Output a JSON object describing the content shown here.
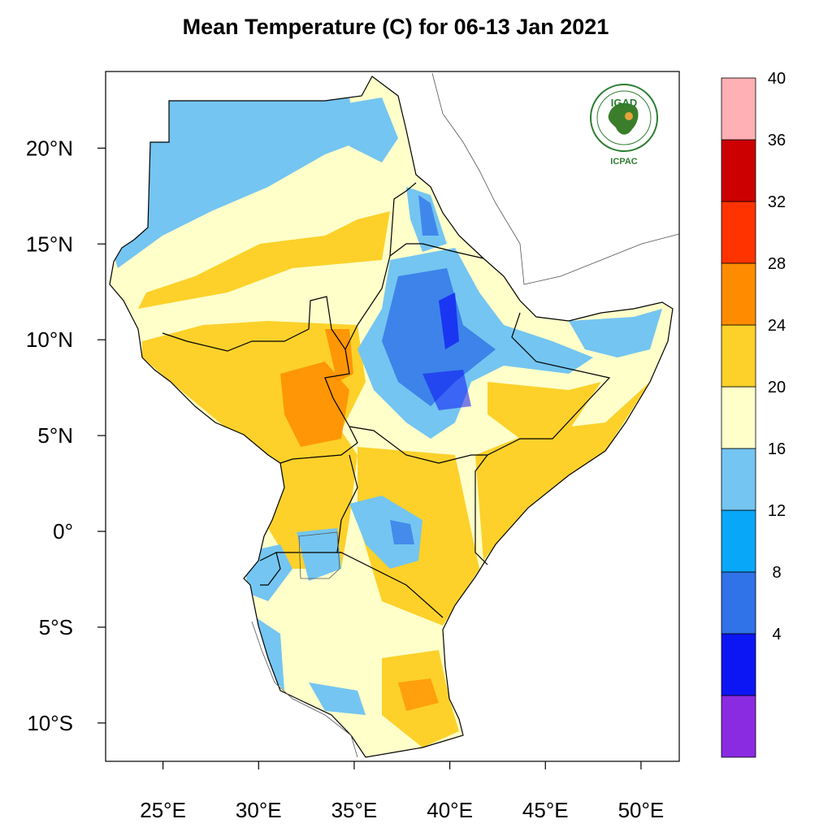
{
  "title": "Mean Temperature (C) for 06-13 Jan 2021",
  "logo": {
    "name": "IGAD",
    "caption": "ICPAC"
  },
  "colors": {
    "land_outline": "#000000",
    "coast": "#555555",
    "frame": "#000000"
  },
  "colorbar": {
    "levels": [
      {
        "color": "#8a2be2",
        "label": ""
      },
      {
        "color": "#0c16f5",
        "label": "4"
      },
      {
        "color": "#3072e8",
        "label": "8"
      },
      {
        "color": "#08a7f7",
        "label": "12"
      },
      {
        "color": "#74c5f1",
        "label": "16"
      },
      {
        "color": "#ffffca",
        "label": "20"
      },
      {
        "color": "#fdd12a",
        "label": "24"
      },
      {
        "color": "#ff8c00",
        "label": "28"
      },
      {
        "color": "#ff3300",
        "label": "32"
      },
      {
        "color": "#cc0000",
        "label": "36"
      },
      {
        "color": "#ffb0b4",
        "label": "40"
      }
    ]
  },
  "chart_data": {
    "type": "heatmap",
    "title": "Mean Temperature (C) for 06-13 Jan 2021",
    "xlim": [
      22,
      52
    ],
    "ylim": [
      -12,
      24
    ],
    "x_ticks": [
      {
        "value": 25,
        "label": "25°E"
      },
      {
        "value": 30,
        "label": "30°E"
      },
      {
        "value": 35,
        "label": "35°E"
      },
      {
        "value": 40,
        "label": "40°E"
      },
      {
        "value": 45,
        "label": "45°E"
      },
      {
        "value": 50,
        "label": "50°E"
      }
    ],
    "y_ticks": [
      {
        "value": 20,
        "label": "20°N"
      },
      {
        "value": 15,
        "label": "15°N"
      },
      {
        "value": 10,
        "label": "10°N"
      },
      {
        "value": 5,
        "label": "5°N"
      },
      {
        "value": 0,
        "label": "0°"
      },
      {
        "value": -5,
        "label": "5°S"
      },
      {
        "value": -10,
        "label": "10°S"
      }
    ],
    "colorbar_levels": [
      4,
      8,
      12,
      16,
      20,
      24,
      28,
      32,
      36,
      40
    ]
  }
}
